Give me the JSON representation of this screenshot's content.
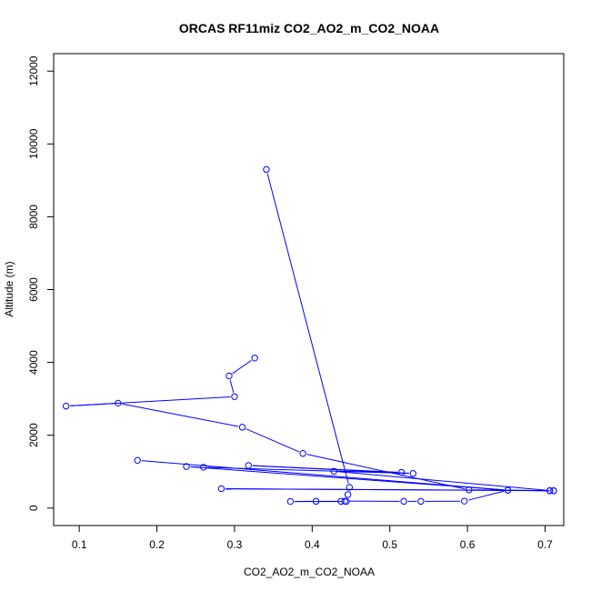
{
  "chart_data": {
    "type": "line",
    "title": "ORCAS RF11miz CO2_AO2_m_CO2_NOAA",
    "xlabel": "CO2_AO2_m_CO2_NOAA",
    "ylabel": "Altitude (m)",
    "xlim": [
      0.067,
      0.724
    ],
    "ylim": [
      -480,
      12480
    ],
    "xticks": [
      0.1,
      0.2,
      0.3,
      0.4,
      0.5,
      0.6,
      0.7
    ],
    "xtick_labels": [
      "0.1",
      "0.2",
      "0.3",
      "0.4",
      "0.5",
      "0.6",
      "0.7"
    ],
    "yticks": [
      0,
      2000,
      4000,
      6000,
      8000,
      10000,
      12000
    ],
    "ytick_labels": [
      "0",
      "2000",
      "4000",
      "6000",
      "8000",
      "10000",
      "12000"
    ],
    "grid": false,
    "color": "#0000ff",
    "series": [
      {
        "x": [
          0.341,
          0.448,
          0.446,
          0.444,
          0.372,
          0.405,
          0.437,
          0.442,
          0.518,
          0.54,
          0.596,
          0.652,
          0.711,
          0.706,
          0.602,
          0.388,
          0.31,
          0.15,
          0.083,
          0.3,
          0.293,
          0.326
        ],
        "y": [
          9300,
          570,
          370,
          180,
          180,
          185,
          185,
          190,
          185,
          185,
          190,
          490,
          475,
          475,
          500,
          1500,
          2220,
          2880,
          2800,
          3060,
          3630,
          4120
        ]
      },
      {
        "x": [
          0.175,
          0.652,
          0.238,
          0.26,
          0.53,
          0.318,
          0.515,
          0.428,
          0.706,
          0.283,
          0.711
        ],
        "y": [
          1310,
          490,
          1140,
          1120,
          950,
          1170,
          980,
          1010,
          480,
          530,
          475
        ]
      }
    ]
  }
}
